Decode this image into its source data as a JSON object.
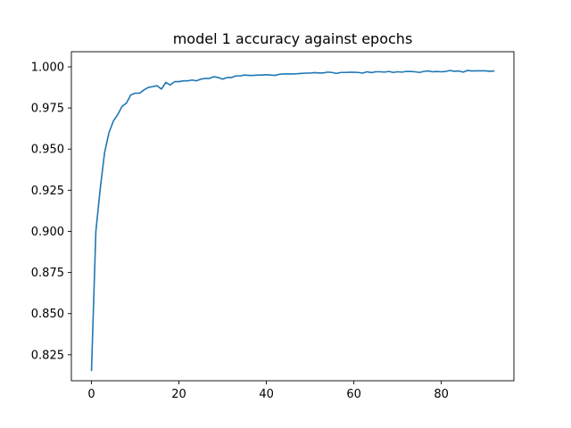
{
  "chart_data": {
    "type": "line",
    "title": "model 1 accuracy against epochs",
    "xlabel": "",
    "ylabel": "",
    "xlim": [
      -4.6,
      96.6
    ],
    "ylim": [
      0.8092,
      1.0092
    ],
    "x_ticks": [
      0,
      20,
      40,
      60,
      80
    ],
    "y_ticks": [
      0.825,
      0.85,
      0.875,
      0.9,
      0.925,
      0.95,
      0.975,
      1.0
    ],
    "y_tick_labels": [
      "0.825",
      "0.850",
      "0.875",
      "0.900",
      "0.925",
      "0.950",
      "0.975",
      "1.000"
    ],
    "grid": false,
    "line_color": "#1f77b4",
    "series": [
      {
        "values": [
          0.8155,
          0.9,
          0.926,
          0.948,
          0.96,
          0.967,
          0.971,
          0.976,
          0.978,
          0.983,
          0.984,
          0.984,
          0.986,
          0.9875,
          0.988,
          0.9885,
          0.9865,
          0.9905,
          0.989,
          0.991,
          0.991,
          0.9915,
          0.9915,
          0.992,
          0.9915,
          0.9925,
          0.993,
          0.993,
          0.994,
          0.9935,
          0.9925,
          0.9935,
          0.9935,
          0.9945,
          0.9945,
          0.995,
          0.9948,
          0.9948,
          0.995,
          0.995,
          0.9952,
          0.995,
          0.9948,
          0.9955,
          0.9957,
          0.9957,
          0.9957,
          0.9958,
          0.996,
          0.9962,
          0.9962,
          0.9965,
          0.9963,
          0.9963,
          0.9968,
          0.9966,
          0.996,
          0.9966,
          0.9966,
          0.9967,
          0.9967,
          0.9966,
          0.9962,
          0.997,
          0.9965,
          0.997,
          0.997,
          0.9968,
          0.9972,
          0.9966,
          0.997,
          0.9968,
          0.9972,
          0.9972,
          0.997,
          0.9966,
          0.9972,
          0.9975,
          0.997,
          0.9972,
          0.997,
          0.9972,
          0.9978,
          0.9973,
          0.9975,
          0.9968,
          0.9978,
          0.9975,
          0.9976,
          0.9976,
          0.9976,
          0.9973,
          0.9975
        ]
      }
    ]
  }
}
